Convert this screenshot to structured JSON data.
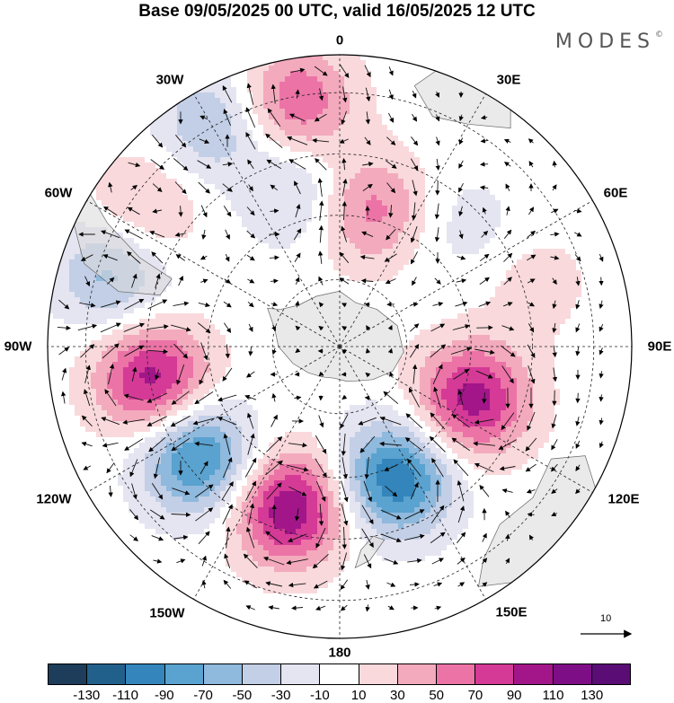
{
  "title": "Base 09/05/2025 00 UTC, valid 16/05/2025 12 UTC",
  "brand": "MODES",
  "brand_mark": "©",
  "longitude_labels": {
    "lon_0": "0",
    "lon_30e": "30E",
    "lon_60e": "60E",
    "lon_90e": "90E",
    "lon_120e": "120E",
    "lon_150e": "150E",
    "lon_180": "180",
    "lon_150w": "150W",
    "lon_120w": "120W",
    "lon_90w": "90W",
    "lon_60w": "60W",
    "lon_30w": "30W"
  },
  "reference_vector": {
    "label": "10"
  },
  "colorbar": {
    "ticks": [
      "-130",
      "-110",
      "-90",
      "-70",
      "-50",
      "-30",
      "-10",
      "10",
      "30",
      "50",
      "70",
      "90",
      "110",
      "130"
    ],
    "colors": [
      "#1d3d5b",
      "#22608c",
      "#3385bb",
      "#5aa2cf",
      "#8fb9dd",
      "#c2cfe6",
      "#e5e4f1",
      "#ffffff",
      "#f9d9dc",
      "#f3aabd",
      "#ec73a6",
      "#d43a96",
      "#a3168a",
      "#7d0e85",
      "#5a0d74"
    ]
  },
  "map": {
    "projection": "south polar stereographic",
    "field_color_scale": "diverging blue-white-magenta",
    "anomaly_centers": [
      {
        "lon": -10,
        "rad": 0.85,
        "value": 70
      },
      {
        "lon": 12,
        "rad": 0.48,
        "value": 60
      },
      {
        "lon": -30,
        "rad": 0.88,
        "value": -50
      },
      {
        "lon": -15,
        "rad": 0.55,
        "value": -40
      },
      {
        "lon": -55,
        "rad": 0.82,
        "value": 40
      },
      {
        "lon": -72,
        "rad": 0.82,
        "value": -60
      },
      {
        "lon": -100,
        "rad": 0.65,
        "value": 100
      },
      {
        "lon": -128,
        "rad": 0.62,
        "value": -100
      },
      {
        "lon": -163,
        "rad": 0.58,
        "value": 110
      },
      {
        "lon": 157,
        "rad": 0.49,
        "value": -110
      },
      {
        "lon": 112,
        "rad": 0.49,
        "value": 100
      },
      {
        "lon": 47,
        "rad": 0.6,
        "value": -20
      },
      {
        "lon": 72,
        "rad": 0.7,
        "value": 20
      }
    ]
  }
}
